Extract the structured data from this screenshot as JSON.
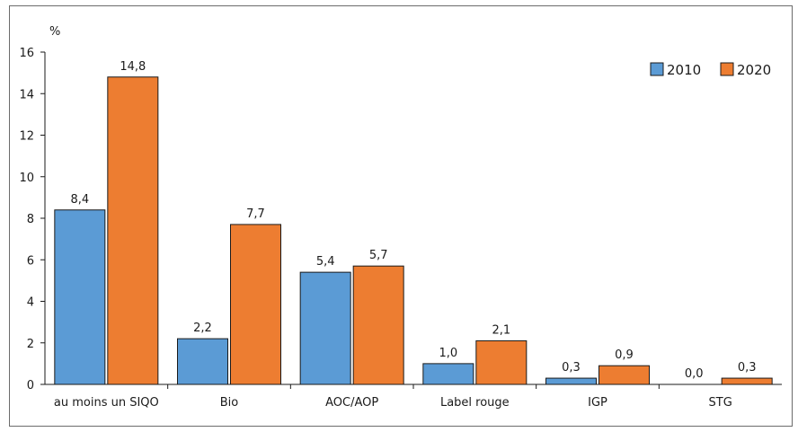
{
  "chart_data": {
    "type": "bar",
    "unit_label": "%",
    "categories": [
      "au moins un SIQO",
      "Bio",
      "AOC/AOP",
      "Label rouge",
      "IGP",
      "STG"
    ],
    "series": [
      {
        "name": "2010",
        "color": "#5b9bd5",
        "values": [
          8.4,
          2.2,
          5.4,
          1.0,
          0.3,
          0.0
        ],
        "labels": [
          "8,4",
          "2,2",
          "5,4",
          "1,0",
          "0,3",
          "0,0"
        ]
      },
      {
        "name": "2020",
        "color": "#ed7d31",
        "values": [
          14.8,
          7.7,
          5.7,
          2.1,
          0.9,
          0.3
        ],
        "labels": [
          "14,8",
          "7,7",
          "5,7",
          "2,1",
          "0,9",
          "0,3"
        ]
      }
    ],
    "ylim": [
      0,
      16
    ],
    "yticks": [
      0,
      2,
      4,
      6,
      8,
      10,
      12,
      14,
      16
    ],
    "grid": false,
    "legend_position": "top-right"
  }
}
